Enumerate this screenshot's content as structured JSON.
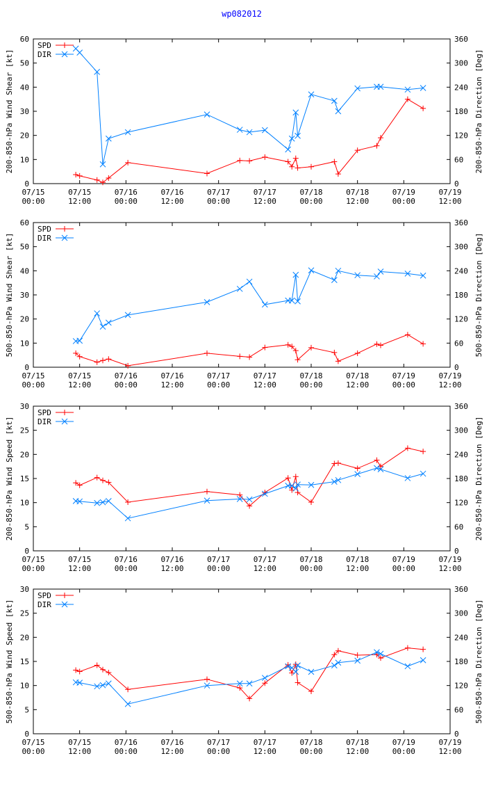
{
  "page_title": "wp082012",
  "colors": {
    "spd": "#ff0000",
    "dir": "#0080ff",
    "title": "#0000ff"
  },
  "x_ticks": [
    {
      "l1": "07/15",
      "l2": "00:00",
      "t": 0
    },
    {
      "l1": "07/15",
      "l2": "12:00",
      "t": 12
    },
    {
      "l1": "07/16",
      "l2": "00:00",
      "t": 24
    },
    {
      "l1": "07/16",
      "l2": "12:00",
      "t": 36
    },
    {
      "l1": "07/17",
      "l2": "00:00",
      "t": 48
    },
    {
      "l1": "07/17",
      "l2": "12:00",
      "t": 60
    },
    {
      "l1": "07/18",
      "l2": "00:00",
      "t": 72
    },
    {
      "l1": "07/18",
      "l2": "12:00",
      "t": 84
    },
    {
      "l1": "07/19",
      "l2": "00:00",
      "t": 96
    },
    {
      "l1": "07/19",
      "l2": "12:00",
      "t": 108
    }
  ],
  "chart_data": [
    {
      "type": "line",
      "ylabel": "200-850-hPa Wind Shear [kt]",
      "y2label": "200-850-hPa Direction [Deg]",
      "xlim": [
        0,
        108
      ],
      "ylim": [
        0,
        60
      ],
      "y_ticks": [
        0,
        10,
        20,
        30,
        40,
        50,
        60
      ],
      "y2lim": [
        0,
        360
      ],
      "y2_ticks": [
        0,
        60,
        120,
        180,
        240,
        300,
        360
      ],
      "series": [
        {
          "name": "SPD",
          "axis": "left",
          "marker": "plus",
          "x": [
            11,
            12,
            16.5,
            18,
            19.5,
            24.5,
            45,
            53.5,
            56,
            60,
            66,
            67,
            68,
            68.5,
            72,
            78,
            79,
            84,
            89,
            90,
            97,
            101
          ],
          "values": [
            3.7,
            3.2,
            1.5,
            0.5,
            2.3,
            8.7,
            4.2,
            9.6,
            9.4,
            11,
            9.1,
            7,
            10.5,
            6.5,
            7,
            9.1,
            4,
            13.8,
            15.7,
            19,
            35,
            31.2
          ]
        },
        {
          "name": "DIR",
          "axis": "right",
          "marker": "x",
          "x": [
            11,
            12,
            16.5,
            18,
            19.5,
            24.5,
            45,
            53.5,
            56,
            60,
            66,
            67,
            68,
            68.5,
            72,
            78,
            79,
            84,
            89,
            90,
            97,
            101
          ],
          "values": [
            336,
            326,
            278,
            48,
            112,
            128,
            172,
            134,
            128,
            133,
            85,
            112,
            177,
            119,
            222,
            206,
            180,
            237,
            241,
            241,
            234,
            238
          ]
        }
      ]
    },
    {
      "type": "line",
      "ylabel": "500-850-hPa Wind Shear [kt]",
      "y2label": "500-850-hPa Direction [Deg]",
      "xlim": [
        0,
        108
      ],
      "ylim": [
        0,
        60
      ],
      "y_ticks": [
        0,
        10,
        20,
        30,
        40,
        50,
        60
      ],
      "y2lim": [
        0,
        360
      ],
      "y2_ticks": [
        0,
        60,
        120,
        180,
        240,
        300,
        360
      ],
      "series": [
        {
          "name": "SPD",
          "axis": "left",
          "marker": "plus",
          "x": [
            11,
            12,
            16.5,
            18,
            19.5,
            24.5,
            45,
            53.5,
            56,
            60,
            66,
            67,
            68,
            68.5,
            72,
            78,
            79,
            84,
            89,
            90,
            97,
            101
          ],
          "values": [
            5.8,
            4.4,
            2.1,
            2.8,
            3.4,
            0.6,
            5.8,
            4.5,
            4.2,
            8.2,
            9.3,
            8.6,
            6.9,
            3.1,
            8.1,
            6.1,
            2.5,
            5.8,
            9.6,
            9.1,
            13.5,
            9.7
          ]
        },
        {
          "name": "DIR",
          "axis": "right",
          "marker": "x",
          "x": [
            11,
            12,
            16.5,
            18,
            19.5,
            24.5,
            45,
            53.5,
            56,
            60,
            66,
            67,
            68,
            68.5,
            72,
            78,
            79,
            84,
            89,
            90,
            97,
            101
          ],
          "values": [
            65,
            66,
            134,
            101,
            111,
            130,
            162,
            195,
            213,
            156,
            166,
            166,
            230,
            164,
            241,
            217,
            240,
            229,
            226,
            238,
            233,
            228
          ]
        }
      ]
    },
    {
      "type": "line",
      "ylabel": "200-850-hPa Wind Speed [kt]",
      "y2label": "200-850-hPa Direction [Deg]",
      "xlim": [
        0,
        108
      ],
      "ylim": [
        0,
        30
      ],
      "y_ticks": [
        0,
        5,
        10,
        15,
        20,
        25,
        30
      ],
      "y2lim": [
        0,
        360
      ],
      "y2_ticks": [
        0,
        60,
        120,
        180,
        240,
        300,
        360
      ],
      "series": [
        {
          "name": "SPD",
          "axis": "left",
          "marker": "plus",
          "x": [
            11,
            12,
            16.5,
            18,
            19.5,
            24.5,
            45,
            53.5,
            56,
            60,
            66,
            67,
            68,
            68.5,
            72,
            78,
            79,
            84,
            89,
            90,
            97,
            101
          ],
          "values": [
            14.1,
            13.6,
            15.2,
            14.6,
            14.2,
            10.1,
            12.3,
            11.6,
            9.3,
            12.1,
            15.1,
            12.6,
            15.4,
            12.1,
            10.1,
            18.1,
            18.2,
            17.1,
            18.8,
            17.5,
            21.3,
            20.6
          ]
        },
        {
          "name": "DIR",
          "axis": "right",
          "marker": "x",
          "x": [
            11,
            12,
            16.5,
            18,
            19.5,
            24.5,
            45,
            53.5,
            56,
            60,
            66,
            67,
            68,
            68.5,
            72,
            78,
            79,
            84,
            89,
            90,
            97,
            101
          ],
          "values": [
            124,
            123,
            119,
            121,
            124,
            81,
            125,
            129,
            128,
            142,
            162,
            162,
            155,
            165,
            164,
            172,
            176,
            191,
            206,
            203,
            181,
            192
          ]
        }
      ]
    },
    {
      "type": "line",
      "ylabel": "500-850-hPa Wind Speed [kt]",
      "y2label": "500-850-hPa Direction [Deg]",
      "xlim": [
        0,
        108
      ],
      "ylim": [
        0,
        30
      ],
      "y_ticks": [
        0,
        5,
        10,
        15,
        20,
        25,
        30
      ],
      "y2lim": [
        0,
        360
      ],
      "y2_ticks": [
        0,
        60,
        120,
        180,
        240,
        300,
        360
      ],
      "series": [
        {
          "name": "SPD",
          "axis": "left",
          "marker": "plus",
          "x": [
            11,
            12,
            16.5,
            18,
            19.5,
            24.5,
            45,
            53.5,
            56,
            60,
            66,
            67,
            68,
            68.5,
            72,
            78,
            79,
            84,
            89,
            90,
            97,
            101
          ],
          "values": [
            13.2,
            12.9,
            14.2,
            13.3,
            12.7,
            9.2,
            11.3,
            9.5,
            7.3,
            10.5,
            14.3,
            12.6,
            14.4,
            10.6,
            8.8,
            16.4,
            17.2,
            16.3,
            16.4,
            15.7,
            17.8,
            17.5
          ]
        },
        {
          "name": "DIR",
          "axis": "right",
          "marker": "x",
          "x": [
            11,
            12,
            16.5,
            18,
            19.5,
            24.5,
            45,
            53.5,
            56,
            60,
            66,
            67,
            68,
            68.5,
            72,
            78,
            79,
            84,
            89,
            90,
            97,
            101
          ],
          "values": [
            128,
            127,
            118,
            121,
            125,
            74,
            120,
            125,
            125,
            139,
            168,
            164,
            154,
            170,
            154,
            170,
            177,
            182,
            203,
            199,
            168,
            183
          ]
        }
      ]
    }
  ]
}
